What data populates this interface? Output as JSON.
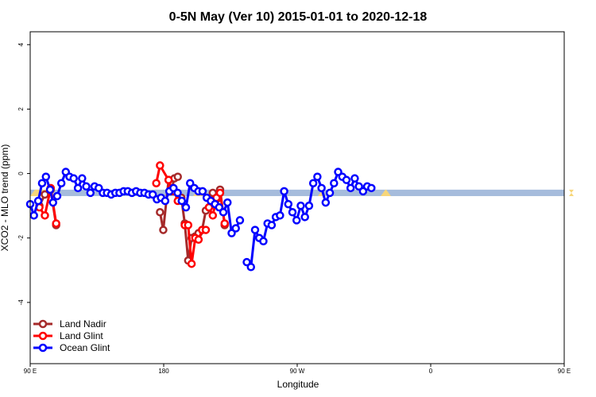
{
  "chart_data": {
    "type": "line",
    "title": "0-5N May (Ver 10)   2015-01-01 to 2020-12-18",
    "xlabel": "Longitude",
    "ylabel": "XCO2 - MLO trend (ppm)",
    "xlim": [
      -90,
      270
    ],
    "ylim": [
      -5.9,
      4.4
    ],
    "x_ticks": [
      {
        "value": -90,
        "label": "90 E"
      },
      {
        "value": 0,
        "label": "180"
      },
      {
        "value": 90,
        "label": "90 W"
      },
      {
        "value": 180,
        "label": "0"
      },
      {
        "value": 270,
        "label": "90 E"
      },
      {
        "value": 360,
        "label": "180"
      }
    ],
    "y_ticks": [
      {
        "value": 4,
        "label": "4"
      },
      {
        "value": 2,
        "label": "2"
      },
      {
        "value": 0,
        "label": "0"
      },
      {
        "value": -2,
        "label": "-2"
      },
      {
        "value": -4,
        "label": "-4"
      }
    ],
    "legend_position": "bottom-left",
    "band": {
      "y_top": -0.5,
      "y_bottom": -0.7,
      "color": "#a6bcdc",
      "land_color": "#f7d67a",
      "land_segments": [
        [
          0,
          30
        ],
        [
          205,
          225
        ],
        [
          362,
          372
        ],
        [
          441,
          454
        ],
        [
          678,
          684
        ]
      ]
    },
    "series": [
      {
        "name": "Land Nadir",
        "color": "#a52a2a",
        "segments": [
          [
            [
              -83.8,
              -1.0
            ],
            [
              -80.1,
              -0.65
            ],
            [
              -76.2,
              -0.5
            ],
            [
              -72.5,
              -1.6
            ]
          ],
          [
            [
              -2.5,
              -1.2
            ],
            [
              -0.3,
              -1.75
            ],
            [
              3.3,
              -0.2
            ],
            [
              5.0,
              -0.55
            ],
            [
              7.2,
              -0.15
            ],
            [
              9.5,
              -0.1
            ]
          ],
          [
            [
              11.9,
              -0.75
            ],
            [
              14.2,
              -1.55
            ],
            [
              16.5,
              -2.7
            ],
            [
              18.8,
              -2.0
            ],
            [
              21.3,
              -1.95
            ],
            [
              23.5,
              -1.85
            ],
            [
              25.9,
              -1.75
            ],
            [
              28.4,
              -1.15
            ]
          ],
          [
            [
              30.5,
              -1.05
            ],
            [
              33.1,
              -0.6
            ],
            [
              35.6,
              -0.8
            ],
            [
              38.0,
              -0.5
            ],
            [
              41.1,
              -1.6
            ]
          ]
        ]
      },
      {
        "name": "Land Glint",
        "color": "#ff0000",
        "segments": [
          [
            [
              -83.8,
              -1.05
            ],
            [
              -80.1,
              -1.3
            ],
            [
              -76.2,
              -0.45
            ],
            [
              -72.5,
              -1.55
            ]
          ],
          [
            [
              -5.0,
              -0.3
            ],
            [
              -2.5,
              0.25
            ],
            [
              3.3,
              -0.2
            ],
            [
              5.0,
              -0.45
            ],
            [
              7.2,
              -0.55
            ],
            [
              9.5,
              -0.85
            ]
          ],
          [
            [
              14.2,
              -1.6
            ],
            [
              16.5,
              -1.6
            ],
            [
              18.8,
              -2.8
            ],
            [
              21.3,
              -2.0
            ],
            [
              23.5,
              -2.05
            ],
            [
              25.9,
              -1.75
            ],
            [
              28.4,
              -1.75
            ]
          ],
          [
            [
              30.5,
              -1.05
            ],
            [
              33.1,
              -1.3
            ],
            [
              35.6,
              -0.75
            ],
            [
              38.0,
              -0.6
            ],
            [
              41.1,
              -1.55
            ]
          ]
        ]
      },
      {
        "name": "Ocean Glint",
        "color": "#0000ff",
        "segments": [
          [
            [
              -90.0,
              -0.95
            ],
            [
              -87.5,
              -1.3
            ],
            [
              -84.6,
              -0.85
            ],
            [
              -82.0,
              -0.3
            ],
            [
              -79.4,
              -0.1
            ],
            [
              -76.6,
              -0.5
            ],
            [
              -74.6,
              -0.9
            ],
            [
              -71.8,
              -0.7
            ],
            [
              -69.0,
              -0.3
            ],
            [
              -66.0,
              0.05
            ],
            [
              -63.5,
              -0.1
            ],
            [
              -60.7,
              -0.15
            ],
            [
              -57.8,
              -0.45
            ],
            [
              -55.0,
              -0.15
            ],
            [
              -52.2,
              -0.4
            ],
            [
              -49.4,
              -0.6
            ],
            [
              -46.6,
              -0.4
            ],
            [
              -43.8,
              -0.45
            ],
            [
              -41.0,
              -0.6
            ],
            [
              -38.2,
              -0.6
            ],
            [
              -35.4,
              -0.65
            ],
            [
              -32.6,
              -0.6
            ],
            [
              -29.8,
              -0.6
            ],
            [
              -27.0,
              -0.55
            ],
            [
              -24.2,
              -0.55
            ],
            [
              -21.4,
              -0.6
            ],
            [
              -18.6,
              -0.55
            ],
            [
              -15.8,
              -0.6
            ],
            [
              -13.0,
              -0.6
            ],
            [
              -10.2,
              -0.65
            ],
            [
              -7.4,
              -0.65
            ],
            [
              -4.6,
              -0.8
            ],
            [
              -1.8,
              -0.75
            ],
            [
              1.0,
              -0.85
            ],
            [
              3.8,
              -0.55
            ],
            [
              6.6,
              -0.45
            ],
            [
              9.4,
              -0.6
            ],
            [
              12.2,
              -0.85
            ],
            [
              15.0,
              -1.05
            ],
            [
              17.8,
              -0.3
            ],
            [
              20.6,
              -0.45
            ],
            [
              23.4,
              -0.55
            ],
            [
              26.2,
              -0.55
            ],
            [
              29.0,
              -0.75
            ],
            [
              31.8,
              -0.85
            ],
            [
              34.6,
              -0.95
            ],
            [
              37.4,
              -1.05
            ],
            [
              40.2,
              -1.2
            ],
            [
              43.0,
              -0.9
            ],
            [
              45.8,
              -1.85
            ],
            [
              48.6,
              -1.7
            ],
            [
              51.4,
              -1.45
            ]
          ],
          [
            [
              56.0,
              -2.75
            ],
            [
              58.8,
              -2.9
            ],
            [
              61.6,
              -1.75
            ],
            [
              64.4,
              -2.0
            ],
            [
              67.2,
              -2.1
            ],
            [
              70.0,
              -1.55
            ],
            [
              72.8,
              -1.6
            ],
            [
              75.6,
              -1.35
            ],
            [
              78.4,
              -1.3
            ],
            [
              81.2,
              -0.55
            ],
            [
              84.0,
              -0.95
            ],
            [
              86.8,
              -1.2
            ],
            [
              89.6,
              -1.45
            ],
            [
              92.4,
              -1.0
            ],
            [
              95.2,
              -1.35
            ],
            [
              98.0,
              -1.0
            ],
            [
              100.8,
              -0.3
            ],
            [
              103.6,
              -0.1
            ],
            [
              106.4,
              -0.45
            ],
            [
              109.2,
              -0.9
            ],
            [
              112.0,
              -0.6
            ],
            [
              114.8,
              -0.3
            ],
            [
              117.6,
              0.05
            ],
            [
              120.4,
              -0.1
            ],
            [
              123.2,
              -0.2
            ],
            [
              126.0,
              -0.45
            ],
            [
              128.8,
              -0.15
            ],
            [
              131.6,
              -0.4
            ],
            [
              134.4,
              -0.55
            ],
            [
              137.2,
              -0.4
            ],
            [
              140.0,
              -0.45
            ]
          ]
        ]
      }
    ]
  }
}
